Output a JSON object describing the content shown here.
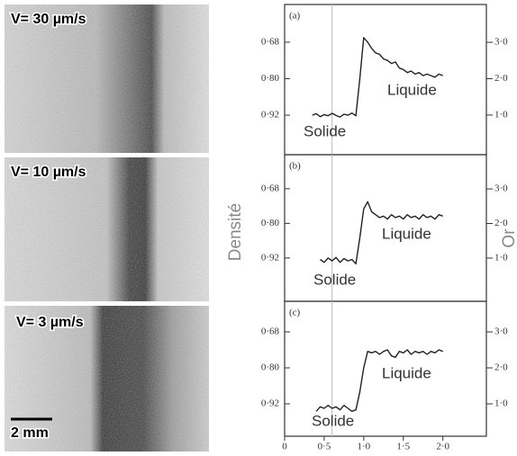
{
  "images": [
    {
      "label": "V= 30 µm/s"
    },
    {
      "label": "V= 10 µm/s"
    },
    {
      "label": "V= 3 µm/s"
    }
  ],
  "scale_bar": "2 mm",
  "y_label": "Densité",
  "y2_label": "Or",
  "chart_data": [
    {
      "type": "line",
      "panel": "(a)",
      "annotations": [
        "Solide",
        "Liquide"
      ],
      "reference_x": 0.6,
      "x": [
        0.35,
        0.4,
        0.45,
        0.5,
        0.55,
        0.6,
        0.65,
        0.7,
        0.75,
        0.8,
        0.85,
        0.9,
        0.95,
        1.0,
        1.05,
        1.1,
        1.15,
        1.2,
        1.25,
        1.3,
        1.35,
        1.4,
        1.45,
        1.5,
        1.55,
        1.6,
        1.65,
        1.7,
        1.75,
        1.8,
        1.85,
        1.9,
        1.95,
        2.0
      ],
      "series": [
        {
          "color": "#222222",
          "values": [
            0.92,
            0.915,
            0.925,
            0.918,
            0.922,
            0.914,
            0.921,
            0.926,
            0.917,
            0.92,
            0.913,
            0.922,
            0.8,
            0.665,
            0.68,
            0.7,
            0.715,
            0.72,
            0.735,
            0.74,
            0.75,
            0.745,
            0.765,
            0.77,
            0.78,
            0.775,
            0.785,
            0.78,
            0.79,
            0.785,
            0.79,
            0.795,
            0.785,
            0.79
          ]
        }
      ],
      "xlim": [
        0,
        2.55
      ],
      "ylim": [
        1.05,
        0.556
      ],
      "yticks": [
        {
          "value": 0.68,
          "label": "0·68"
        },
        {
          "value": 0.8,
          "label": "0·80"
        },
        {
          "value": 0.92,
          "label": "0·92"
        }
      ],
      "y2lim": [
        -0.09,
        4.04
      ],
      "y2ticks": [
        {
          "value": 3,
          "label": "3·0"
        },
        {
          "value": 2,
          "label": "2·0"
        },
        {
          "value": 1,
          "label": "1·0"
        }
      ]
    },
    {
      "type": "line",
      "panel": "(b)",
      "annotations": [
        "Solide",
        "Liquide"
      ],
      "reference_x": 0.6,
      "x": [
        0.45,
        0.5,
        0.55,
        0.6,
        0.65,
        0.7,
        0.75,
        0.8,
        0.85,
        0.9,
        0.95,
        1.0,
        1.05,
        1.1,
        1.15,
        1.2,
        1.25,
        1.3,
        1.35,
        1.4,
        1.45,
        1.5,
        1.55,
        1.6,
        1.65,
        1.7,
        1.75,
        1.8,
        1.85,
        1.9,
        1.95,
        2.0
      ],
      "series": [
        {
          "color": "#222222",
          "values": [
            0.925,
            0.935,
            0.92,
            0.93,
            0.918,
            0.935,
            0.922,
            0.93,
            0.925,
            0.94,
            0.85,
            0.75,
            0.725,
            0.76,
            0.77,
            0.78,
            0.775,
            0.785,
            0.77,
            0.78,
            0.775,
            0.785,
            0.77,
            0.78,
            0.775,
            0.785,
            0.77,
            0.78,
            0.775,
            0.785,
            0.77,
            0.775
          ]
        }
      ],
      "xlim": [
        0,
        2.55
      ],
      "ylim": [
        1.07,
        0.562
      ],
      "yticks": [
        {
          "value": 0.68,
          "label": "0·68"
        },
        {
          "value": 0.8,
          "label": "0·80"
        },
        {
          "value": 0.92,
          "label": "0·92"
        }
      ],
      "y2lim": [
        -0.25,
        3.99
      ],
      "y2ticks": [
        {
          "value": 3,
          "label": "3·0"
        },
        {
          "value": 2,
          "label": "2·0"
        },
        {
          "value": 1,
          "label": "1·0"
        }
      ]
    },
    {
      "type": "line",
      "panel": "(c)",
      "annotations": [
        "Solide",
        "Liquide"
      ],
      "reference_x": 0.6,
      "x": [
        0.4,
        0.45,
        0.5,
        0.55,
        0.6,
        0.65,
        0.7,
        0.75,
        0.8,
        0.85,
        0.9,
        0.95,
        1.0,
        1.05,
        1.1,
        1.15,
        1.2,
        1.25,
        1.3,
        1.35,
        1.4,
        1.45,
        1.5,
        1.55,
        1.6,
        1.65,
        1.7,
        1.75,
        1.8,
        1.85,
        1.9,
        1.95,
        2.0
      ],
      "series": [
        {
          "color": "#222222",
          "values": [
            0.945,
            0.93,
            0.935,
            0.925,
            0.935,
            0.93,
            0.94,
            0.925,
            0.935,
            0.945,
            0.94,
            0.88,
            0.8,
            0.745,
            0.75,
            0.745,
            0.755,
            0.745,
            0.74,
            0.76,
            0.765,
            0.745,
            0.75,
            0.74,
            0.755,
            0.745,
            0.75,
            0.745,
            0.755,
            0.745,
            0.75,
            0.74,
            0.745
          ]
        }
      ],
      "xlim": [
        0,
        2.55
      ],
      "ylim": [
        1.028,
        0.578
      ],
      "xticks": [
        0,
        {
          "value": 0.5,
          "label": "0·5"
        },
        {
          "value": 1,
          "label": "1·0"
        },
        {
          "value": 1.5,
          "label": "1·5"
        },
        {
          "value": 2,
          "label": "2·0"
        }
      ],
      "yticks": [
        {
          "value": 0.68,
          "label": "0·68"
        },
        {
          "value": 0.8,
          "label": "0·80"
        },
        {
          "value": 0.92,
          "label": "0·92"
        }
      ],
      "y2lim": [
        0.1,
        3.85
      ],
      "y2ticks": [
        {
          "value": 3,
          "label": "3·0"
        },
        {
          "value": 2,
          "label": "2·0"
        },
        {
          "value": 1,
          "label": "1·0"
        }
      ]
    }
  ]
}
